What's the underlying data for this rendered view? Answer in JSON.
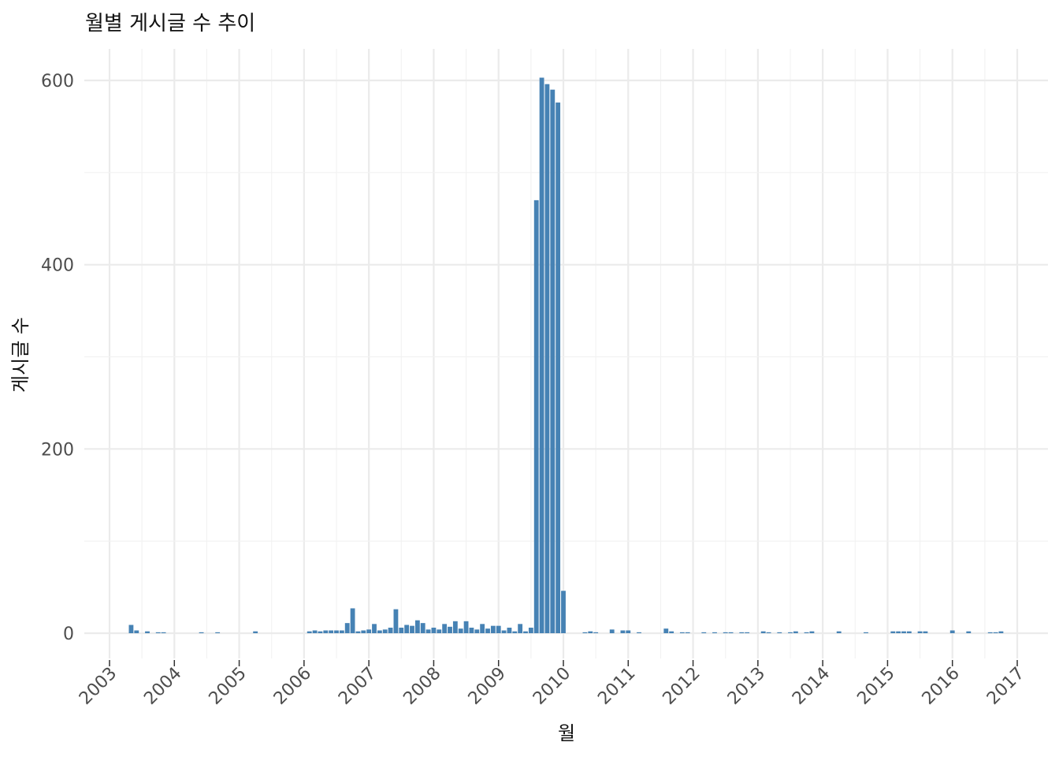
{
  "chart_data": {
    "type": "bar",
    "title": "월별 게시글 수 추이",
    "xlabel": "월",
    "ylabel": "게시글 수",
    "xlim": [
      "2003-01",
      "2017-01"
    ],
    "ylim": [
      -25,
      632
    ],
    "x_ticks": [
      "2003",
      "2004",
      "2005",
      "2006",
      "2007",
      "2008",
      "2009",
      "2010",
      "2011",
      "2012",
      "2013",
      "2014",
      "2015",
      "2016",
      "2017"
    ],
    "y_ticks": [
      0,
      200,
      400,
      600
    ],
    "grid": true,
    "legend": "none",
    "bar_color": "#4682B4",
    "x": [
      "2003-05",
      "2003-06",
      "2003-08",
      "2003-10",
      "2003-11",
      "2004-06",
      "2004-09",
      "2005-04",
      "2006-02",
      "2006-03",
      "2006-04",
      "2006-05",
      "2006-06",
      "2006-07",
      "2006-08",
      "2006-09",
      "2006-10",
      "2006-11",
      "2006-12",
      "2007-01",
      "2007-02",
      "2007-03",
      "2007-04",
      "2007-05",
      "2007-06",
      "2007-07",
      "2007-08",
      "2007-09",
      "2007-10",
      "2007-11",
      "2007-12",
      "2008-01",
      "2008-02",
      "2008-03",
      "2008-04",
      "2008-05",
      "2008-06",
      "2008-07",
      "2008-08",
      "2008-09",
      "2008-10",
      "2008-11",
      "2008-12",
      "2009-01",
      "2009-02",
      "2009-03",
      "2009-04",
      "2009-05",
      "2009-06",
      "2009-07",
      "2009-08",
      "2009-09",
      "2009-10",
      "2009-11",
      "2009-12",
      "2010-01",
      "2010-05",
      "2010-06",
      "2010-07",
      "2010-10",
      "2010-12",
      "2011-01",
      "2011-03",
      "2011-08",
      "2011-09",
      "2011-11",
      "2011-12",
      "2012-03",
      "2012-05",
      "2012-07",
      "2012-08",
      "2012-10",
      "2012-11",
      "2013-02",
      "2013-03",
      "2013-05",
      "2013-07",
      "2013-08",
      "2013-10",
      "2013-11",
      "2014-04",
      "2014-09",
      "2015-02",
      "2015-03",
      "2015-04",
      "2015-05",
      "2015-07",
      "2015-08",
      "2016-01",
      "2016-04",
      "2016-08",
      "2016-09",
      "2016-10"
    ],
    "values": [
      9,
      3,
      2,
      1,
      1,
      1,
      1,
      2,
      2,
      3,
      2,
      3,
      3,
      3,
      3,
      11,
      27,
      2,
      3,
      4,
      10,
      3,
      4,
      6,
      26,
      6,
      9,
      8,
      14,
      11,
      4,
      6,
      4,
      10,
      7,
      13,
      5,
      13,
      6,
      4,
      10,
      5,
      8,
      8,
      3,
      6,
      2,
      10,
      2,
      6,
      470,
      603,
      596,
      590,
      576,
      46,
      1,
      2,
      1,
      4,
      3,
      3,
      1,
      5,
      2,
      1,
      1,
      1,
      1,
      1,
      1,
      1,
      1,
      2,
      1,
      1,
      1,
      2,
      1,
      2,
      2,
      1,
      2,
      2,
      2,
      2,
      2,
      2,
      3,
      2,
      1,
      1,
      2
    ]
  }
}
